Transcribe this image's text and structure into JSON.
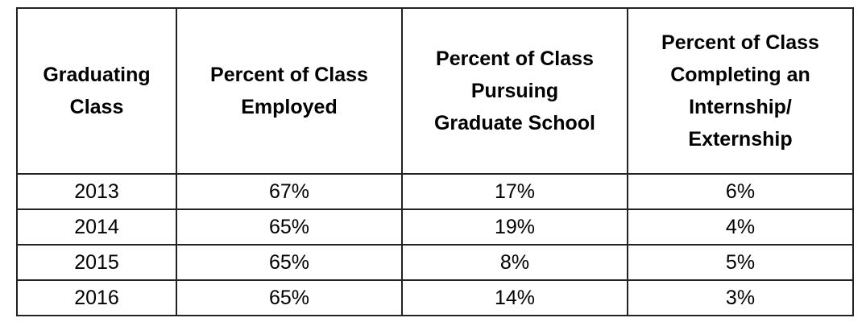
{
  "table": {
    "header": [
      [
        "Graduating",
        "Class"
      ],
      [
        "Percent of Class",
        "Employed"
      ],
      [
        "Percent of Class",
        "Pursuing",
        "Graduate School"
      ],
      [
        "Percent of Class",
        "Completing an",
        "Internship/",
        "Externship"
      ]
    ],
    "rows": [
      [
        "2013",
        "67%",
        "17%",
        "6%"
      ],
      [
        "2014",
        "65%",
        "19%",
        "4%"
      ],
      [
        "2015",
        "65%",
        "8%",
        "5%"
      ],
      [
        "2016",
        "65%",
        "14%",
        "3%"
      ]
    ]
  }
}
